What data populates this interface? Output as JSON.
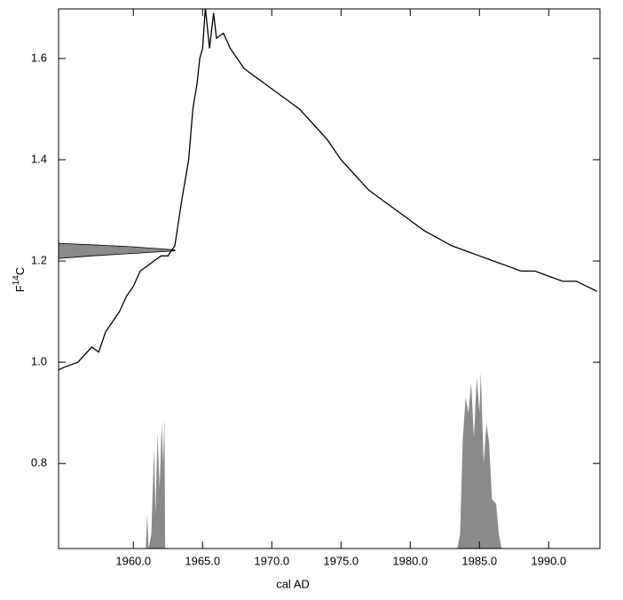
{
  "chart_data": {
    "type": "line",
    "xlabel": "cal  AD",
    "ylabel_parts": [
      "F",
      "14",
      "C"
    ],
    "xlim": [
      1954.6,
      1993.7
    ],
    "ylim": [
      0.632,
      1.698
    ],
    "xticks": [
      {
        "value": 1960,
        "label": "1960.0"
      },
      {
        "value": 1965,
        "label": "1965.0"
      },
      {
        "value": 1970,
        "label": "1970.0"
      },
      {
        "value": 1975,
        "label": "1975.0"
      },
      {
        "value": 1980,
        "label": "1980.0"
      },
      {
        "value": 1985,
        "label": "1985.0"
      },
      {
        "value": 1990,
        "label": "1990.0"
      }
    ],
    "yticks": [
      0.8,
      {
        "value": 1,
        "label": "1.0"
      },
      1.2,
      1.4,
      1.6
    ],
    "series": [
      {
        "kind": "band",
        "color": "#8a8a8a",
        "x": [
          1954.6,
          1957,
          1960,
          1963
        ],
        "values": [
          1.235,
          1.232,
          1.228,
          1.222
        ],
        "lower": [
          1.205,
          1.21,
          1.215,
          1.22
        ]
      },
      {
        "kind": "area",
        "color": "#8a8a8a",
        "x": [
          1960.9,
          1961.0,
          1961.1,
          1961.3,
          1961.5,
          1961.6,
          1961.75,
          1961.9,
          1962.05,
          1962.15,
          1962.25,
          1962.3
        ],
        "values": [
          0.632,
          0.7,
          0.632,
          0.66,
          0.83,
          0.7,
          0.86,
          0.75,
          0.88,
          0.8,
          0.89,
          0.632
        ]
      },
      {
        "kind": "area",
        "color": "#8a8a8a",
        "x": [
          1983.4,
          1983.6,
          1983.8,
          1984.0,
          1984.2,
          1984.4,
          1984.6,
          1984.8,
          1985.0,
          1985.1,
          1985.3,
          1985.5,
          1985.7,
          1985.9,
          1986.2,
          1986.4,
          1986.6
        ],
        "values": [
          0.632,
          0.66,
          0.85,
          0.93,
          0.9,
          0.96,
          0.85,
          0.97,
          0.9,
          0.98,
          0.8,
          0.88,
          0.84,
          0.73,
          0.72,
          0.66,
          0.632
        ]
      },
      {
        "kind": "line",
        "color": "#000000",
        "x": [
          1954.6,
          1955.0,
          1956.0,
          1957.0,
          1957.5,
          1958.0,
          1958.5,
          1959.0,
          1959.5,
          1960.0,
          1960.5,
          1961.0,
          1961.5,
          1962.0,
          1962.5,
          1963.0,
          1963.5,
          1964.0,
          1964.3,
          1964.6,
          1964.8,
          1965.0,
          1965.2,
          1965.5,
          1965.8,
          1966.0,
          1966.5,
          1967.0,
          1967.5,
          1968.0,
          1968.5,
          1969.0,
          1969.5,
          1970.0,
          1971.0,
          1972.0,
          1973.0,
          1974.0,
          1975.0,
          1976.0,
          1977.0,
          1978.0,
          1979.0,
          1980.0,
          1981.0,
          1982.0,
          1983.0,
          1984.0,
          1985.0,
          1986.0,
          1987.0,
          1988.0,
          1989.0,
          1990.0,
          1991.0,
          1992.0,
          1993.5
        ],
        "values": [
          0.985,
          0.99,
          1.0,
          1.03,
          1.02,
          1.06,
          1.08,
          1.1,
          1.13,
          1.15,
          1.18,
          1.19,
          1.2,
          1.21,
          1.21,
          1.23,
          1.32,
          1.4,
          1.5,
          1.55,
          1.6,
          1.62,
          1.7,
          1.62,
          1.69,
          1.64,
          1.65,
          1.62,
          1.6,
          1.58,
          1.57,
          1.56,
          1.55,
          1.54,
          1.52,
          1.5,
          1.47,
          1.44,
          1.4,
          1.37,
          1.34,
          1.32,
          1.3,
          1.28,
          1.26,
          1.245,
          1.23,
          1.22,
          1.21,
          1.2,
          1.19,
          1.18,
          1.18,
          1.17,
          1.16,
          1.16,
          1.14
        ]
      }
    ]
  }
}
